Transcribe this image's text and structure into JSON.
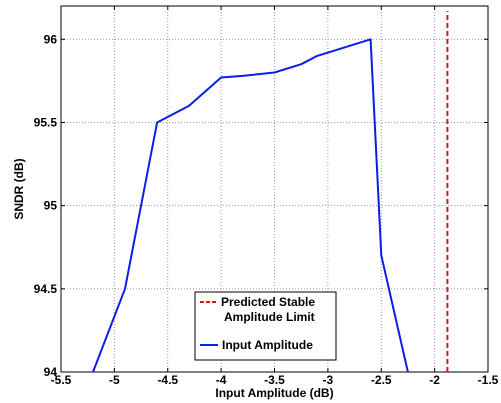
{
  "chart_data": {
    "type": "line",
    "title": "",
    "xlabel": "Input Amplitude (dB)",
    "ylabel": "SNDR (dB)",
    "xlim": [
      -5.5,
      -1.5
    ],
    "ylim": [
      94,
      96.2
    ],
    "xticks": [
      -5.5,
      -5,
      -4.5,
      -4,
      -3.5,
      -3,
      -2.5,
      -2,
      -1.5
    ],
    "xtick_labels": [
      "-5.5",
      "-5",
      "-4.5",
      "-4",
      "-3.5",
      "-3",
      "-2.5",
      "-2",
      "-1.5"
    ],
    "yticks": [
      94,
      94.5,
      95,
      95.5,
      96
    ],
    "ytick_labels": [
      "94",
      "94.5",
      "95",
      "95.5",
      "96"
    ],
    "grid": true,
    "legend_position": "bottom-center",
    "series": [
      {
        "name": "Input Amplitude",
        "style": "solid",
        "color": "#0a1ee6",
        "x": [
          -5.2,
          -4.9,
          -4.6,
          -4.3,
          -4.0,
          -3.8,
          -3.5,
          -3.25,
          -3.1,
          -2.6,
          -2.5,
          -2.25
        ],
        "y": [
          94.0,
          94.5,
          95.5,
          95.6,
          95.77,
          95.78,
          95.8,
          95.85,
          95.9,
          96.0,
          94.7,
          94.0
        ]
      },
      {
        "name": "Predicted Stable Amplitude Limit",
        "legend_lines": [
          "Predicted Stable",
          "Amplitude Limit"
        ],
        "style": "dashed",
        "color": "#e0141e",
        "x": [
          -1.88,
          -1.88
        ],
        "y": [
          94.0,
          96.17
        ]
      }
    ]
  }
}
